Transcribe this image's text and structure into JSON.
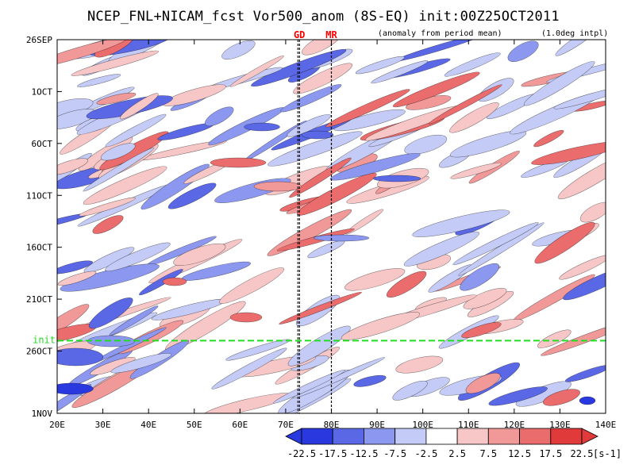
{
  "title": "NCEP_FNL+NICAM_fcst Vor500_anom (8S-EQ) init:00Z25OCT2011",
  "subtitle_left": "(anomaly from period mean)",
  "subtitle_right": "(1.0deg intpl)",
  "markers": [
    {
      "label": "GD",
      "lon": 73
    },
    {
      "label": "MR",
      "lon": 80
    }
  ],
  "init_label": "init",
  "colors": {
    "neg4": "#2a38e0",
    "neg3": "#5a68e6",
    "neg2": "#8c98ef",
    "neg1": "#c4cbf6",
    "zero": "#ffffff",
    "pos1": "#f7c6c6",
    "pos2": "#f19898",
    "pos3": "#ea6c6c",
    "pos4": "#e03a3a",
    "init_line": "#22dd22",
    "marker_label": "#ff0000"
  },
  "chart_data": {
    "type": "heatmap",
    "title": "NCEP_FNL+NICAM_fcst Vor500_anom (8S-EQ) init:00Z25OCT2011",
    "x_axis": {
      "label": "",
      "range": [
        "20E",
        "140E"
      ],
      "lon_range": [
        20,
        140
      ],
      "ticks": [
        "20E",
        "30E",
        "40E",
        "50E",
        "60E",
        "70E",
        "80E",
        "90E",
        "100E",
        "110E",
        "120E",
        "130E",
        "140E"
      ]
    },
    "y_axis": {
      "label": "",
      "range": [
        "26SEP",
        "1NOV"
      ],
      "inverted": true,
      "ticks": [
        {
          "label": "26SEP",
          "day": 0
        },
        {
          "label": "1OCT",
          "day": 5
        },
        {
          "label": "6OCT",
          "day": 10
        },
        {
          "label": "11OCT",
          "day": 15
        },
        {
          "label": "16OCT",
          "day": 20
        },
        {
          "label": "21OCT",
          "day": 25
        },
        {
          "label": "26OCT",
          "day": 30
        },
        {
          "label": "1NOV",
          "day": 36
        }
      ]
    },
    "init_day": 29,
    "colorbar": {
      "unit": "[s-1]",
      "labels": [
        "-22.5",
        "-17.5",
        "-12.5",
        "-7.5",
        "-2.5",
        "2.5",
        "7.5",
        "12.5",
        "17.5",
        "22.5"
      ],
      "levels": [
        -22.5,
        -17.5,
        -12.5,
        -7.5,
        -2.5,
        2.5,
        7.5,
        12.5,
        17.5,
        22.5
      ]
    },
    "grid": false
  }
}
